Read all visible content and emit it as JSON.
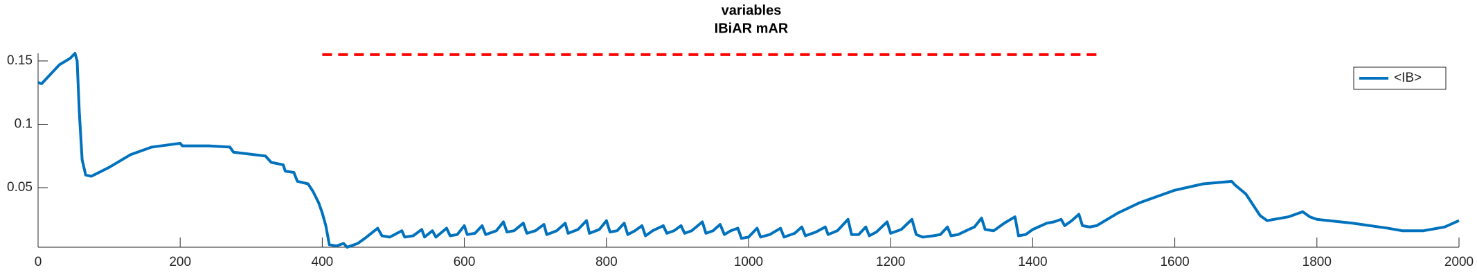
{
  "chart_data": {
    "type": "line",
    "title": "variables",
    "subtitle": "IBiAR mAR",
    "xlim": [
      0,
      2000
    ],
    "xticks": [
      0,
      200,
      400,
      600,
      800,
      1000,
      1200,
      1400,
      1600,
      1800,
      2000
    ],
    "ylim": [
      0.003,
      0.156
    ],
    "yticks": [
      0.05,
      0.1,
      0.15
    ],
    "legend": "top-right",
    "reference_line": {
      "x": [
        400,
        1490
      ],
      "y": 0.155,
      "color": "#ff0000"
    },
    "x": [
      0,
      5,
      15,
      30,
      45,
      52,
      55,
      58,
      62,
      67,
      75,
      100,
      130,
      160,
      200,
      203,
      240,
      270,
      275,
      320,
      328,
      345,
      348,
      360,
      365,
      380,
      387,
      395,
      400,
      405,
      410,
      420,
      430,
      435,
      450,
      460,
      478,
      484,
      495,
      512,
      516,
      528,
      540,
      544,
      555,
      560,
      575,
      580,
      590,
      600,
      604,
      615,
      625,
      630,
      645,
      655,
      660,
      670,
      683,
      688,
      700,
      712,
      716,
      730,
      742,
      746,
      760,
      772,
      776,
      790,
      800,
      805,
      815,
      825,
      830,
      840,
      850,
      855,
      865,
      880,
      885,
      895,
      905,
      910,
      920,
      935,
      940,
      950,
      960,
      966,
      975,
      985,
      990,
      1000,
      1012,
      1017,
      1030,
      1045,
      1050,
      1065,
      1075,
      1080,
      1095,
      1108,
      1112,
      1125,
      1140,
      1145,
      1155,
      1165,
      1170,
      1180,
      1195,
      1200,
      1215,
      1230,
      1236,
      1245,
      1260,
      1270,
      1280,
      1285,
      1295,
      1310,
      1318,
      1328,
      1333,
      1345,
      1360,
      1375,
      1380,
      1390,
      1400,
      1420,
      1430,
      1440,
      1445,
      1455,
      1465,
      1470,
      1480,
      1490,
      1520,
      1550,
      1600,
      1640,
      1680,
      1685,
      1700,
      1720,
      1730,
      1760,
      1780,
      1790,
      1800,
      1850,
      1900,
      1920,
      1950,
      1980,
      2000
    ],
    "series": [
      {
        "name": "<IB>",
        "color": "#0072bd",
        "values": [
          0.133,
          0.132,
          0.138,
          0.147,
          0.152,
          0.156,
          0.15,
          0.11,
          0.072,
          0.06,
          0.059,
          0.066,
          0.076,
          0.082,
          0.085,
          0.083,
          0.083,
          0.082,
          0.078,
          0.075,
          0.07,
          0.068,
          0.063,
          0.062,
          0.055,
          0.053,
          0.047,
          0.038,
          0.03,
          0.02,
          0.005,
          0.004,
          0.006,
          0.003,
          0.006,
          0.01,
          0.018,
          0.012,
          0.011,
          0.016,
          0.011,
          0.012,
          0.017,
          0.011,
          0.016,
          0.011,
          0.018,
          0.012,
          0.013,
          0.02,
          0.013,
          0.014,
          0.02,
          0.013,
          0.016,
          0.023,
          0.015,
          0.016,
          0.022,
          0.014,
          0.016,
          0.021,
          0.013,
          0.016,
          0.022,
          0.014,
          0.017,
          0.024,
          0.014,
          0.017,
          0.024,
          0.015,
          0.016,
          0.022,
          0.013,
          0.016,
          0.02,
          0.012,
          0.016,
          0.02,
          0.014,
          0.016,
          0.02,
          0.014,
          0.016,
          0.023,
          0.014,
          0.016,
          0.021,
          0.013,
          0.016,
          0.018,
          0.01,
          0.011,
          0.018,
          0.011,
          0.013,
          0.018,
          0.011,
          0.014,
          0.019,
          0.012,
          0.015,
          0.019,
          0.013,
          0.016,
          0.025,
          0.013,
          0.013,
          0.019,
          0.012,
          0.015,
          0.023,
          0.014,
          0.017,
          0.025,
          0.013,
          0.011,
          0.012,
          0.013,
          0.019,
          0.012,
          0.013,
          0.017,
          0.019,
          0.026,
          0.017,
          0.016,
          0.022,
          0.027,
          0.012,
          0.013,
          0.017,
          0.022,
          0.023,
          0.025,
          0.02,
          0.024,
          0.029,
          0.02,
          0.019,
          0.02,
          0.03,
          0.038,
          0.048,
          0.053,
          0.055,
          0.052,
          0.045,
          0.028,
          0.024,
          0.027,
          0.031,
          0.027,
          0.025,
          0.022,
          0.018,
          0.016,
          0.016,
          0.019,
          0.024
        ]
      }
    ]
  }
}
